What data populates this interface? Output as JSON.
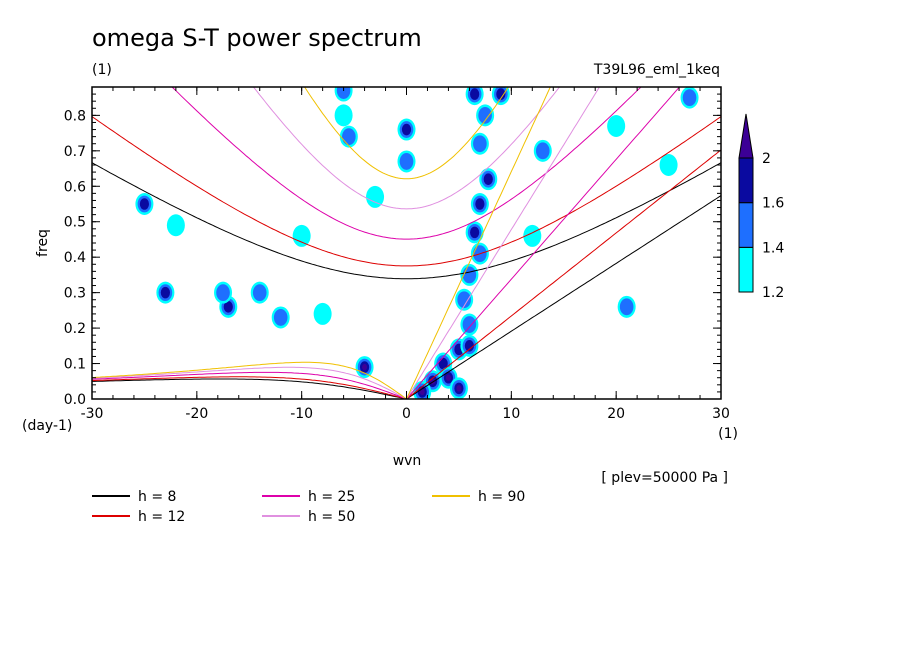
{
  "chart_data": {
    "type": "contour",
    "title": "omega S-T power spectrum",
    "subtitle_left": "(1)",
    "subtitle_right": "T39L96_eml_1keq",
    "xlabel": "wvn",
    "ylabel": "freq",
    "x_unit": "(1)",
    "y_unit": "(day-1)",
    "annotation": "[ plev=50000 Pa ]",
    "xlim": [
      -30,
      30
    ],
    "ylim": [
      0,
      0.88
    ],
    "xticks": [
      -30,
      -20,
      -10,
      0,
      10,
      20,
      30
    ],
    "xtick_labels": [
      "-30",
      "-20",
      "-10",
      "0",
      "10",
      "20",
      "30"
    ],
    "yticks": [
      0,
      0.1,
      0.2,
      0.3,
      0.4,
      0.5,
      0.6,
      0.7,
      0.8
    ],
    "ytick_labels": [
      "0.0",
      "0.1",
      "0.2",
      "0.3",
      "0.4",
      "0.5",
      "0.6",
      "0.7",
      "0.8"
    ],
    "colorbar": {
      "levels": [
        1.2,
        1.4,
        1.6,
        2
      ],
      "labels": [
        "1.2",
        "1.4",
        "1.6",
        "2"
      ],
      "colors": [
        "#00ffff",
        "#1e6fff",
        "#0a0aa0",
        "#3c0096"
      ]
    },
    "dispersion_curves": [
      {
        "label": "h =  8",
        "h": 8,
        "color": "#000000"
      },
      {
        "label": "h = 12",
        "h": 12,
        "color": "#dd0000"
      },
      {
        "label": "h = 25",
        "h": 25,
        "color": "#dd00aa"
      },
      {
        "label": "h = 50",
        "h": 50,
        "color": "#e090e0"
      },
      {
        "label": "h = 90",
        "h": 90,
        "color": "#f0c000"
      }
    ],
    "contour_blobs": [
      {
        "x": 6.5,
        "y": 0.86,
        "level": 3
      },
      {
        "x": 7.5,
        "y": 0.8,
        "level": 2
      },
      {
        "x": 7.0,
        "y": 0.72,
        "level": 2
      },
      {
        "x": 7.8,
        "y": 0.62,
        "level": 3
      },
      {
        "x": 7.0,
        "y": 0.55,
        "level": 3
      },
      {
        "x": 6.5,
        "y": 0.47,
        "level": 3
      },
      {
        "x": 7.0,
        "y": 0.41,
        "level": 2
      },
      {
        "x": 6.0,
        "y": 0.35,
        "level": 2
      },
      {
        "x": 5.5,
        "y": 0.28,
        "level": 2
      },
      {
        "x": 6.0,
        "y": 0.21,
        "level": 2
      },
      {
        "x": 5.0,
        "y": 0.14,
        "level": 3
      },
      {
        "x": 6.0,
        "y": 0.15,
        "level": 3
      },
      {
        "x": 3.5,
        "y": 0.1,
        "level": 3
      },
      {
        "x": 2.5,
        "y": 0.05,
        "level": 4
      },
      {
        "x": 4.0,
        "y": 0.06,
        "level": 4
      },
      {
        "x": 1.5,
        "y": 0.02,
        "level": 4
      },
      {
        "x": 5.0,
        "y": 0.03,
        "level": 4
      },
      {
        "x": -4.0,
        "y": 0.09,
        "level": 4
      },
      {
        "x": -6.0,
        "y": 0.87,
        "level": 2
      },
      {
        "x": -5.5,
        "y": 0.74,
        "level": 2
      },
      {
        "x": -6.0,
        "y": 0.8,
        "level": 1
      },
      {
        "x": 0.0,
        "y": 0.76,
        "level": 3
      },
      {
        "x": 0.0,
        "y": 0.67,
        "level": 2
      },
      {
        "x": 9.0,
        "y": 0.86,
        "level": 3
      },
      {
        "x": -17.0,
        "y": 0.26,
        "level": 3
      },
      {
        "x": -17.5,
        "y": 0.3,
        "level": 2
      },
      {
        "x": -23.0,
        "y": 0.3,
        "level": 3
      },
      {
        "x": -25.0,
        "y": 0.55,
        "level": 3
      },
      {
        "x": -14.0,
        "y": 0.3,
        "level": 2
      },
      {
        "x": -12.0,
        "y": 0.23,
        "level": 2
      },
      {
        "x": -8.0,
        "y": 0.24,
        "level": 1
      },
      {
        "x": -22.0,
        "y": 0.49,
        "level": 1
      },
      {
        "x": 13.0,
        "y": 0.7,
        "level": 2
      },
      {
        "x": 20.0,
        "y": 0.77,
        "level": 1
      },
      {
        "x": 25.0,
        "y": 0.66,
        "level": 1
      },
      {
        "x": 27.0,
        "y": 0.85,
        "level": 2
      },
      {
        "x": 21.0,
        "y": 0.26,
        "level": 2
      },
      {
        "x": 12.0,
        "y": 0.46,
        "level": 1
      },
      {
        "x": -3.0,
        "y": 0.57,
        "level": 1
      },
      {
        "x": -10.0,
        "y": 0.46,
        "level": 1
      }
    ]
  }
}
